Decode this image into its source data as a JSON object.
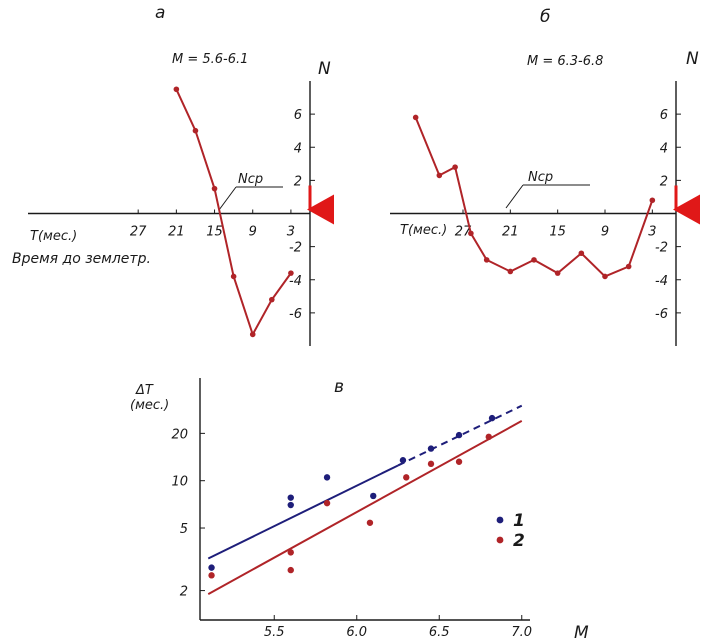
{
  "colors": {
    "axis": "#1a1a1a",
    "red": "#b02428",
    "blue": "#1e1e7a",
    "arrow": "#e01818"
  },
  "chart_data": [
    {
      "id": "a",
      "type": "line",
      "panel_label": "a",
      "magnitude_label": "M = 5.6-6.1",
      "y_axis_label": "N",
      "x_axis_label": "T(мес.)",
      "x_axis_caption": "Время до землетр.",
      "baseline_label": "Ncp",
      "x_ticks": [
        27,
        21,
        15,
        9,
        3
      ],
      "y_ticks": [
        6,
        4,
        2,
        -2,
        -4,
        -6
      ],
      "x_reversed": true,
      "xlim": [
        33,
        0
      ],
      "ylim": [
        -8,
        8
      ],
      "x": [
        21,
        18,
        15,
        12,
        9,
        6,
        3
      ],
      "y": [
        7.5,
        5.0,
        1.5,
        -3.8,
        -7.3,
        -5.2,
        -3.6
      ]
    },
    {
      "id": "b",
      "type": "line",
      "panel_label": "б",
      "magnitude_label": "M = 6.3-6.8",
      "y_axis_label": "N",
      "x_axis_label": "T(мес.)",
      "baseline_label": "Ncp",
      "x_ticks": [
        27,
        21,
        15,
        9,
        3
      ],
      "y_ticks": [
        6,
        4,
        2,
        -2,
        -4,
        -6
      ],
      "x_reversed": true,
      "xlim": [
        36,
        0
      ],
      "ylim": [
        -8,
        8
      ],
      "x": [
        33,
        30,
        28,
        26,
        24,
        21,
        18,
        15,
        12,
        9,
        6,
        3
      ],
      "y": [
        5.8,
        2.3,
        2.8,
        -1.2,
        -2.8,
        -3.5,
        -2.8,
        -3.6,
        -2.4,
        -3.8,
        -3.2,
        0.8
      ]
    },
    {
      "id": "v",
      "type": "scatter",
      "panel_label": "в",
      "y_axis_label": "ΔT",
      "y_axis_unit": "(мес.)",
      "x_axis_label": "M",
      "y_scale": "log",
      "x_ticks": [
        5.5,
        6.0,
        6.5,
        7.0
      ],
      "y_ticks": [
        2,
        5,
        10,
        20
      ],
      "xlim": [
        5.05,
        7.05
      ],
      "ylim": [
        1.3,
        45
      ],
      "legend": [
        "1",
        "2"
      ],
      "legend_position": "right",
      "series": [
        {
          "name": "1",
          "color": "#1e1e7a",
          "points": [
            [
              5.12,
              2.8
            ],
            [
              5.6,
              7.0
            ],
            [
              5.6,
              7.8
            ],
            [
              5.82,
              10.5
            ],
            [
              6.1,
              8.0
            ],
            [
              6.28,
              13.5
            ],
            [
              6.45,
              16.0
            ],
            [
              6.62,
              19.5
            ],
            [
              6.82,
              25.0
            ]
          ],
          "fit": [
            [
              5.1,
              3.2
            ],
            [
              6.25,
              12.5
            ],
            [
              7.0,
              30.0
            ]
          ]
        },
        {
          "name": "2",
          "color": "#b02428",
          "points": [
            [
              5.12,
              2.5
            ],
            [
              5.6,
              3.5
            ],
            [
              5.6,
              2.7
            ],
            [
              5.82,
              7.2
            ],
            [
              6.08,
              5.4
            ],
            [
              6.3,
              10.5
            ],
            [
              6.45,
              12.8
            ],
            [
              6.62,
              13.2
            ],
            [
              6.8,
              19.0
            ]
          ],
          "fit": [
            [
              5.1,
              1.9
            ],
            [
              7.0,
              24.0
            ]
          ]
        }
      ]
    }
  ]
}
